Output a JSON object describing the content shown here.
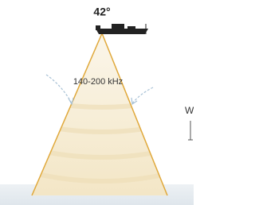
{
  "header": {
    "angle": "42°"
  },
  "labels": {
    "frequency": "140-200 kHz",
    "side_text": "W"
  }
}
